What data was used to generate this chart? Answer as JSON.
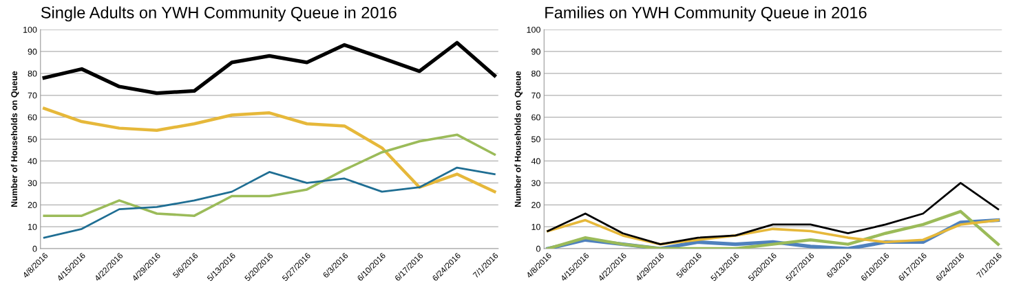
{
  "chart_data": [
    {
      "type": "line",
      "title": "Single Adults on YWH Community Queue in 2016",
      "ylabel": "Number of Households on Queue",
      "categories": [
        "4/8/2016",
        "4/15/2016",
        "4/22/2016",
        "4/29/2016",
        "5/6/2016",
        "5/13/2016",
        "5/20/2016",
        "5/27/2016",
        "6/3/2016",
        "6/10/2016",
        "6/17/2016",
        "6/24/2016",
        "7/1/2016"
      ],
      "ylim": [
        0,
        100
      ],
      "yticks": [
        0,
        10,
        20,
        30,
        40,
        50,
        60,
        70,
        80,
        90,
        100
      ],
      "grid": "y",
      "legend": false,
      "marker": "none",
      "line_style": "solid",
      "series": [
        {
          "color": "#000000",
          "values": [
            78,
            82,
            74,
            71,
            72,
            85,
            88,
            85,
            93,
            87,
            81,
            94,
            79
          ]
        },
        {
          "color": "#e6b83a",
          "values": [
            64,
            58,
            55,
            54,
            57,
            61,
            62,
            57,
            56,
            46,
            28,
            34,
            26
          ]
        },
        {
          "color": "#9bbb59",
          "values": [
            15,
            15,
            22,
            16,
            15,
            24,
            24,
            27,
            36,
            44,
            49,
            52,
            43
          ]
        },
        {
          "color": "#1f6e93",
          "values": [
            5,
            9,
            18,
            19,
            22,
            26,
            35,
            30,
            32,
            26,
            28,
            37,
            34
          ]
        }
      ]
    },
    {
      "type": "line",
      "title": "Families on YWH Community Queue in 2016",
      "ylabel": "Number of Households on Queue",
      "categories": [
        "4/8/2016",
        "4/15/2016",
        "4/22/2016",
        "4/29/2016",
        "5/6/2016",
        "5/13/2016",
        "5/20/2016",
        "5/27/2016",
        "6/3/2016",
        "6/10/2016",
        "6/17/2016",
        "6/24/2016",
        "7/1/2016"
      ],
      "ylim": [
        0,
        100
      ],
      "yticks": [
        0,
        10,
        20,
        30,
        40,
        50,
        60,
        70,
        80,
        90,
        100
      ],
      "grid": "y",
      "legend": false,
      "marker": "none",
      "line_style": "solid",
      "series": [
        {
          "color": "#4f81bd",
          "values": [
            0,
            4,
            2,
            0,
            3,
            2,
            3,
            1,
            0,
            3,
            3,
            12,
            13
          ]
        },
        {
          "color": "#9bbb59",
          "values": [
            0,
            5,
            2,
            0,
            0,
            0,
            2,
            4,
            2,
            7,
            11,
            17,
            2
          ]
        },
        {
          "color": "#e6b83a",
          "values": [
            8,
            13,
            6,
            2,
            4,
            6,
            9,
            8,
            5,
            3,
            4,
            11,
            13
          ]
        },
        {
          "color": "#000000",
          "values": [
            8,
            16,
            7,
            2,
            5,
            6,
            11,
            11,
            7,
            11,
            16,
            30,
            18
          ]
        }
      ]
    }
  ]
}
